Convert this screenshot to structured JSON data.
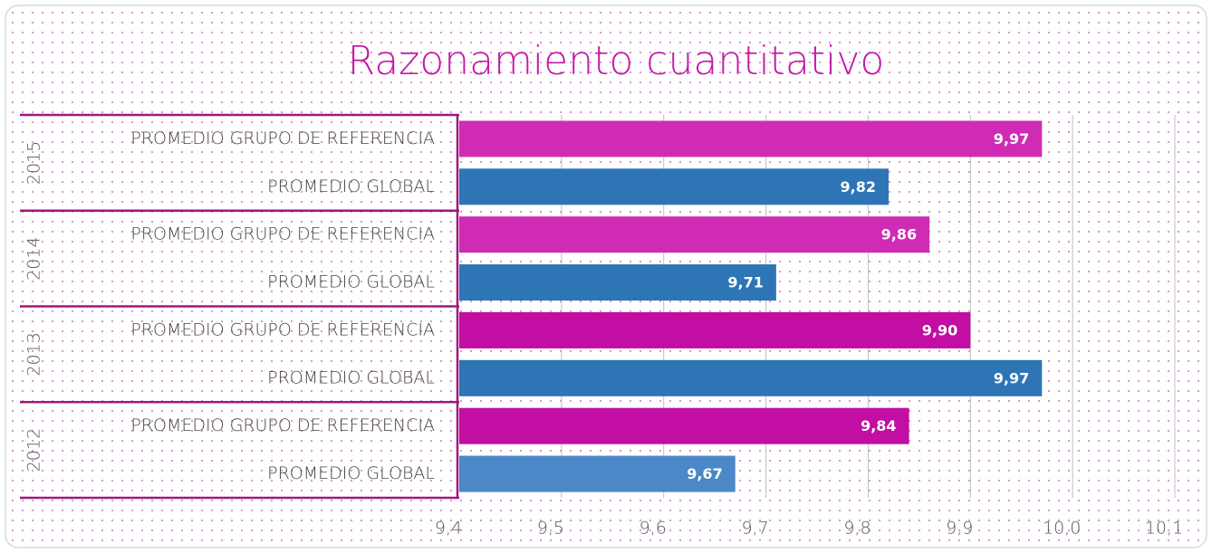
{
  "chart_data": {
    "type": "bar",
    "orientation": "horizontal",
    "title": "Razonamiento cuantitativo",
    "group_labels": [
      "2015",
      "2014",
      "2013",
      "2012"
    ],
    "categories": [
      "PROMEDIO GRUPO DE REFERENCIA",
      "PROMEDIO GLOBAL",
      "PROMEDIO GRUPO DE REFERENCIA",
      "PROMEDIO GLOBAL",
      "PROMEDIO GRUPO DE REFERENCIA",
      "PROMEDIO GLOBAL",
      "PROMEDIO GRUPO DE REFERENCIA",
      "PROMEDIO GLOBAL"
    ],
    "values": [
      9.97,
      9.82,
      9.86,
      9.71,
      9.9,
      9.97,
      9.84,
      9.67
    ],
    "value_labels": [
      "9,97",
      "9,82",
      "9,86",
      "9,71",
      "9,90",
      "9,97",
      "9,84",
      "9,67"
    ],
    "colors": [
      "#d02bb4",
      "#2e75b6",
      "#d02bb4",
      "#2e75b6",
      "#c20ea2",
      "#2e75b6",
      "#c20ea2",
      "#4a88c8"
    ],
    "xlim": [
      9.4,
      10.1
    ],
    "xticks": [
      {
        "value": 9.4,
        "label": "9,4"
      },
      {
        "value": 9.5,
        "label": "9,5"
      },
      {
        "value": 9.6,
        "label": "9,6"
      },
      {
        "value": 9.7,
        "label": "9,7"
      },
      {
        "value": 9.8,
        "label": "9,8"
      },
      {
        "value": 9.9,
        "label": "9,9"
      },
      {
        "value": 10.0,
        "label": "10,0"
      },
      {
        "value": 10.1,
        "label": "10,1"
      }
    ],
    "grid": true
  }
}
